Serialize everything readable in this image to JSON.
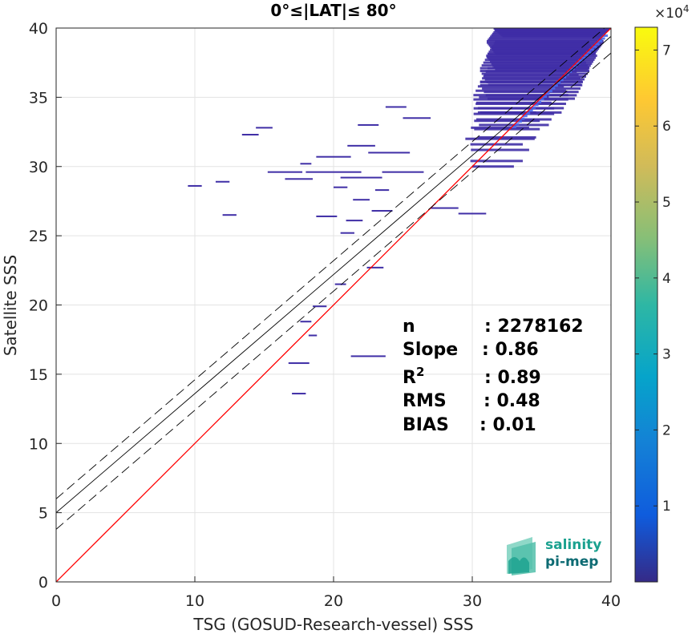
{
  "chart_data": {
    "type": "heatmap",
    "title": "0°≤|LAT|≤ 80°",
    "xlabel": "TSG (GOSUD-Research-vessel) SSS",
    "ylabel": "Satellite SSS",
    "xlim": [
      0,
      40
    ],
    "ylim": [
      0,
      40
    ],
    "xticks": [
      0,
      10,
      20,
      30,
      40
    ],
    "yticks": [
      0,
      5,
      10,
      15,
      20,
      25,
      30,
      35,
      40
    ],
    "grid": true,
    "colorbar": {
      "min": 0,
      "max": 73000,
      "ticks": [
        1,
        2,
        3,
        4,
        5,
        6,
        7
      ],
      "exponent_label": "×10",
      "exponent_power": "4",
      "colormap": "parula"
    },
    "lines": [
      {
        "name": "identity",
        "color": "#ff0000",
        "points": [
          [
            0,
            0
          ],
          [
            40,
            40
          ]
        ]
      },
      {
        "name": "regression",
        "color": "#000000",
        "points": [
          [
            0,
            5.0
          ],
          [
            40,
            39.4
          ]
        ]
      },
      {
        "name": "upper-bound",
        "color": "#000000",
        "dash": true,
        "points": [
          [
            0,
            6.0
          ],
          [
            40,
            40.4
          ]
        ]
      },
      {
        "name": "lower-bound",
        "color": "#000000",
        "dash": true,
        "points": [
          [
            0,
            3.8
          ],
          [
            40,
            38.2
          ]
        ]
      }
    ],
    "density_segments": [
      [
        31.5,
        40.0,
        40.0,
        0.6,
        20
      ],
      [
        31.0,
        39.5,
        39.0,
        0.9,
        18
      ],
      [
        31.0,
        39.0,
        38.0,
        1.0,
        15
      ],
      [
        30.5,
        38.5,
        37.0,
        1.1,
        12
      ],
      [
        30.5,
        38.0,
        36.0,
        1.1,
        10
      ],
      [
        30.0,
        37.0,
        35.0,
        1.1,
        8
      ],
      [
        30.0,
        36.0,
        34.0,
        1.0,
        6
      ],
      [
        30.0,
        35.0,
        33.0,
        0.9,
        4
      ],
      [
        29.5,
        34.5,
        32.0,
        0.8,
        3
      ],
      [
        29.5,
        34.0,
        31.0,
        0.6,
        2
      ],
      [
        30.0,
        33.0,
        30.0,
        0.5,
        1
      ]
    ],
    "sparse_points": [
      [
        24.5,
        34.3,
        1.5
      ],
      [
        26.0,
        33.5,
        2.0
      ],
      [
        22.5,
        33.0,
        1.5
      ],
      [
        15.0,
        32.8,
        1.2
      ],
      [
        14.0,
        32.3,
        1.2
      ],
      [
        22.0,
        31.5,
        2.0
      ],
      [
        24.0,
        31.0,
        3.0
      ],
      [
        20.0,
        30.7,
        2.5
      ],
      [
        18.0,
        30.2,
        0.8
      ],
      [
        16.5,
        29.6,
        2.5
      ],
      [
        20.0,
        29.6,
        4.0
      ],
      [
        25.0,
        29.6,
        3.0
      ],
      [
        17.5,
        29.1,
        2.0
      ],
      [
        22.0,
        29.2,
        3.0
      ],
      [
        12.0,
        28.9,
        1.0
      ],
      [
        10.0,
        28.6,
        1.0
      ],
      [
        20.5,
        28.5,
        1.0
      ],
      [
        23.5,
        28.3,
        1.0
      ],
      [
        22.0,
        27.6,
        1.2
      ],
      [
        28.0,
        27.0,
        2.0
      ],
      [
        23.5,
        26.8,
        1.5
      ],
      [
        30.0,
        26.6,
        2.0
      ],
      [
        12.5,
        26.5,
        1.0
      ],
      [
        19.5,
        26.4,
        1.5
      ],
      [
        21.5,
        26.1,
        1.2
      ],
      [
        21.0,
        25.2,
        1.0
      ],
      [
        23.0,
        22.7,
        1.2
      ],
      [
        20.5,
        21.5,
        0.8
      ],
      [
        19.0,
        19.9,
        1.0
      ],
      [
        18.0,
        18.8,
        0.8
      ],
      [
        18.5,
        17.8,
        0.6
      ],
      [
        22.5,
        16.3,
        2.5
      ],
      [
        17.5,
        15.8,
        1.5
      ],
      [
        17.5,
        13.6,
        1.0
      ]
    ],
    "stats": [
      {
        "label": "n",
        "sep": ": ",
        "value": "2278162"
      },
      {
        "label": "Slope",
        "sep": ": ",
        "value": "0.86"
      },
      {
        "label": "R",
        "sup": "2",
        "sep": ": ",
        "value": "0.89"
      },
      {
        "label": "RMS",
        "sep": ": ",
        "value": "0.48"
      },
      {
        "label": "BIAS",
        "sep": ": ",
        "value": "0.01"
      }
    ]
  },
  "logo": {
    "line1": "salinity",
    "line2": "pi-mep",
    "color1": "#1aa18f",
    "color2": "#0d6b73"
  }
}
